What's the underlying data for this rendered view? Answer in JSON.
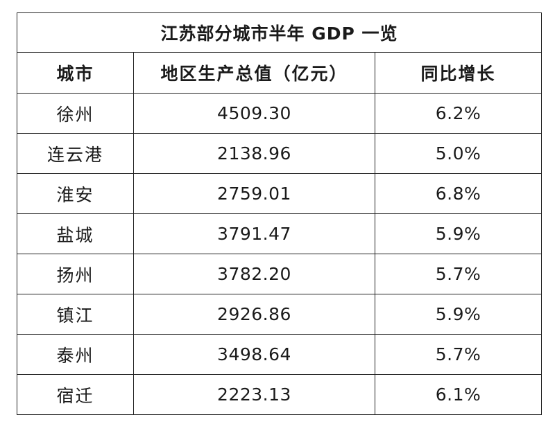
{
  "table": {
    "title": "江苏部分城市半年 GDP 一览",
    "headers": [
      "城市",
      "地区生产总值（亿元）",
      "同比增长"
    ],
    "rows": [
      {
        "city": "徐州",
        "gdp": "4509.30",
        "growth": "6.2%"
      },
      {
        "city": "连云港",
        "gdp": "2138.96",
        "growth": "5.0%"
      },
      {
        "city": "淮安",
        "gdp": "2759.01",
        "growth": "6.8%"
      },
      {
        "city": "盐城",
        "gdp": "3791.47",
        "growth": "5.9%"
      },
      {
        "city": "扬州",
        "gdp": "3782.20",
        "growth": "5.7%"
      },
      {
        "city": "镇江",
        "gdp": "2926.86",
        "growth": "5.9%"
      },
      {
        "city": "泰州",
        "gdp": "3498.64",
        "growth": "5.7%"
      },
      {
        "city": "宿迁",
        "gdp": "2223.13",
        "growth": "6.1%"
      }
    ]
  }
}
